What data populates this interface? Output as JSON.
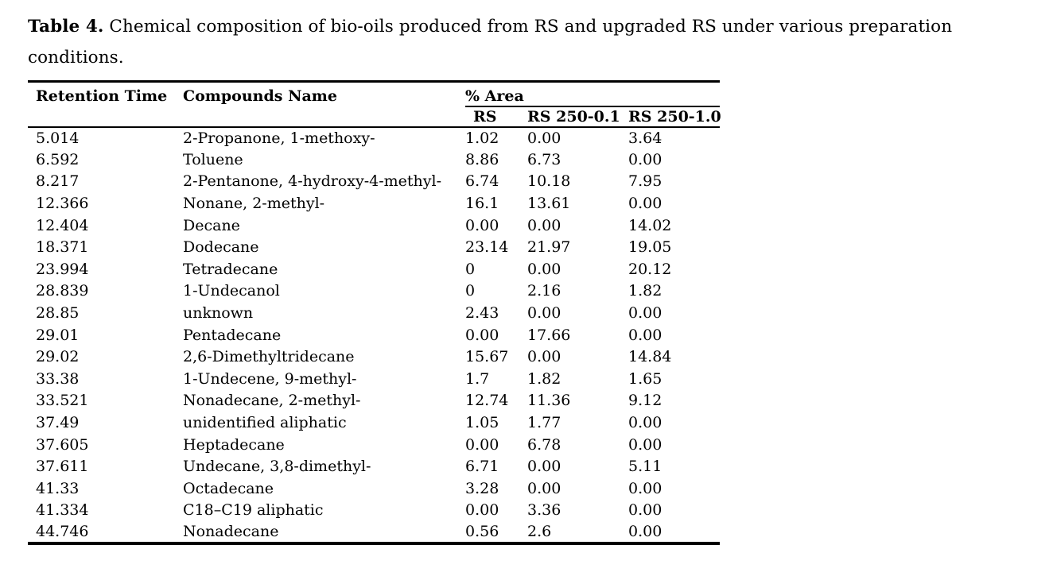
{
  "caption": {
    "label": "Table 4.",
    "text": "Chemical composition of bio-oils produced from RS and upgraded RS under various preparation conditions."
  },
  "table": {
    "headers": {
      "retention_time": "Retention Time",
      "compounds_name": "Compounds Name",
      "area_group": "% Area",
      "sub_columns": [
        "RS",
        "RS 250-0.1",
        "RS 250-1.0"
      ]
    },
    "rows": [
      {
        "retention_time": "5.014",
        "compound": "2-Propanone, 1-methoxy-",
        "rs": "1.02",
        "rs_250_01": "0.00",
        "rs_250_10": "3.64"
      },
      {
        "retention_time": "6.592",
        "compound": "Toluene",
        "rs": "8.86",
        "rs_250_01": "6.73",
        "rs_250_10": "0.00"
      },
      {
        "retention_time": "8.217",
        "compound": "2-Pentanone, 4-hydroxy-4-methyl-",
        "rs": "6.74",
        "rs_250_01": "10.18",
        "rs_250_10": "7.95"
      },
      {
        "retention_time": "12.366",
        "compound": "Nonane, 2-methyl-",
        "rs": "16.1",
        "rs_250_01": "13.61",
        "rs_250_10": "0.00"
      },
      {
        "retention_time": "12.404",
        "compound": "Decane",
        "rs": "0.00",
        "rs_250_01": "0.00",
        "rs_250_10": "14.02"
      },
      {
        "retention_time": "18.371",
        "compound": "Dodecane",
        "rs": "23.14",
        "rs_250_01": "21.97",
        "rs_250_10": "19.05"
      },
      {
        "retention_time": "23.994",
        "compound": "Tetradecane",
        "rs": "0",
        "rs_250_01": "0.00",
        "rs_250_10": "20.12"
      },
      {
        "retention_time": "28.839",
        "compound": "1-Undecanol",
        "rs": "0",
        "rs_250_01": "2.16",
        "rs_250_10": "1.82"
      },
      {
        "retention_time": "28.85",
        "compound": "unknown",
        "rs": "2.43",
        "rs_250_01": "0.00",
        "rs_250_10": "0.00"
      },
      {
        "retention_time": "29.01",
        "compound": "Pentadecane",
        "rs": "0.00",
        "rs_250_01": "17.66",
        "rs_250_10": "0.00"
      },
      {
        "retention_time": "29.02",
        "compound": "2,6-Dimethyltridecane",
        "rs": "15.67",
        "rs_250_01": "0.00",
        "rs_250_10": "14.84"
      },
      {
        "retention_time": "33.38",
        "compound": "1-Undecene, 9-methyl-",
        "rs": "1.7",
        "rs_250_01": "1.82",
        "rs_250_10": "1.65"
      },
      {
        "retention_time": "33.521",
        "compound": "Nonadecane, 2-methyl-",
        "rs": "12.74",
        "rs_250_01": "11.36",
        "rs_250_10": "9.12"
      },
      {
        "retention_time": "37.49",
        "compound": "unidentified aliphatic",
        "rs": "1.05",
        "rs_250_01": "1.77",
        "rs_250_10": "0.00"
      },
      {
        "retention_time": "37.605",
        "compound": "Heptadecane",
        "rs": "0.00",
        "rs_250_01": "6.78",
        "rs_250_10": "0.00"
      },
      {
        "retention_time": "37.611",
        "compound": "Undecane, 3,8-dimethyl-",
        "rs": "6.71",
        "rs_250_01": "0.00",
        "rs_250_10": "5.11"
      },
      {
        "retention_time": "41.33",
        "compound": "Octadecane",
        "rs": "3.28",
        "rs_250_01": "0.00",
        "rs_250_10": "0.00"
      },
      {
        "retention_time": "41.334",
        "compound": "C18–C19 aliphatic",
        "rs": "0.00",
        "rs_250_01": "3.36",
        "rs_250_10": "0.00"
      },
      {
        "retention_time": "44.746",
        "compound": "Nonadecane",
        "rs": "0.56",
        "rs_250_01": "2.6",
        "rs_250_10": "0.00"
      }
    ]
  },
  "colors": {
    "text": "#000000",
    "background": "#ffffff",
    "rule": "#000000"
  }
}
